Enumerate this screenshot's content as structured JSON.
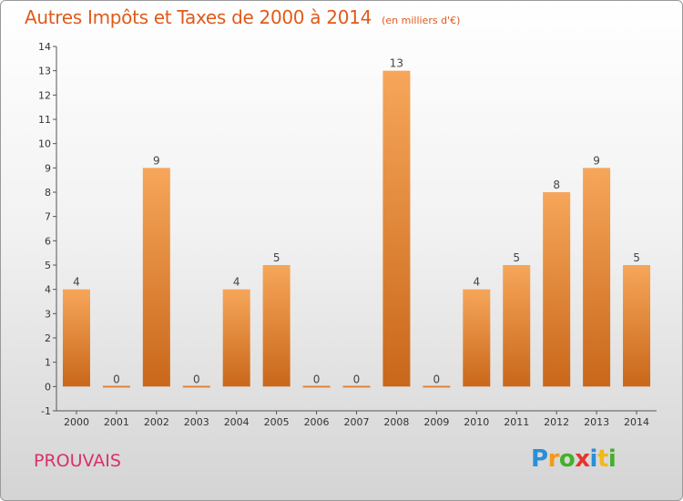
{
  "title": "Autres Impôts et Taxes de 2000 à 2014",
  "subtitle": "(en milliers d'€)",
  "commune": "PROUVAIS",
  "logo": {
    "text": "Proxiti"
  },
  "colors": {
    "bar_light": "#f6a65a",
    "bar_dark": "#c9671a",
    "title": "#e05a1a",
    "commune": "#d8316a"
  },
  "chart_data": {
    "type": "bar",
    "categories": [
      "2000",
      "2001",
      "2002",
      "2003",
      "2004",
      "2005",
      "2006",
      "2007",
      "2008",
      "2009",
      "2010",
      "2011",
      "2012",
      "2013",
      "2014"
    ],
    "values": [
      4,
      0,
      9,
      0,
      4,
      5,
      0,
      0,
      13,
      0,
      4,
      5,
      8,
      9,
      5
    ],
    "yticks": [
      -1,
      0,
      1,
      2,
      3,
      4,
      5,
      6,
      7,
      8,
      9,
      10,
      11,
      12,
      13,
      14
    ],
    "ylim": [
      -1,
      14
    ],
    "title": "Autres Impôts et Taxes de 2000 à 2014",
    "xlabel": "",
    "ylabel": "",
    "grid": false,
    "legend": "none"
  }
}
